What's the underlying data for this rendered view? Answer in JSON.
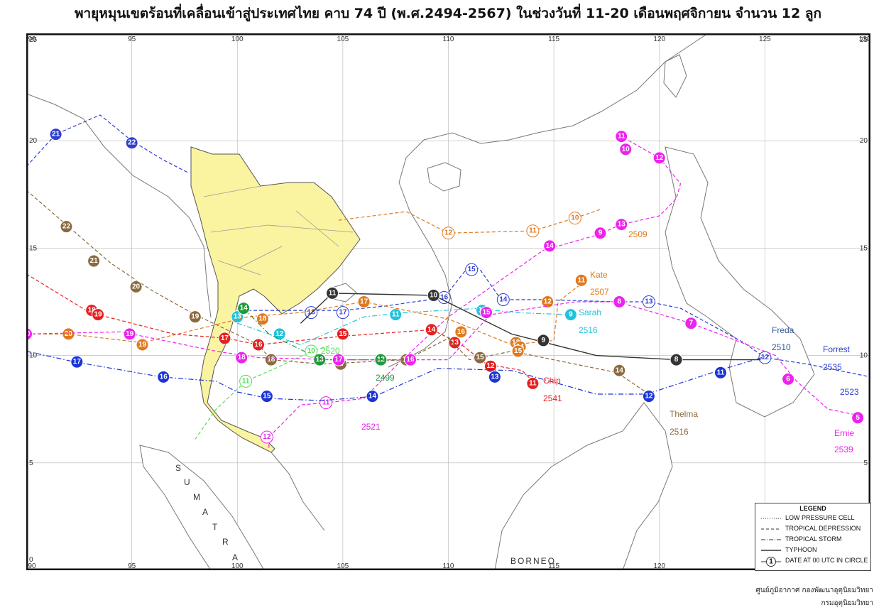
{
  "title": "พายุหมุนเขตร้อนที่เคลื่อนเข้าสู่ประเทศไทย คาบ 74 ปี (พ.ศ.2494-2567) ในช่วงวันที่ 11-20 เดือนพฤศจิกายน จำนวน 12 ลูก",
  "axes": {
    "lon_ticks": [
      "90",
      "95",
      "100",
      "105",
      "110",
      "115",
      "120",
      "125",
      "130"
    ],
    "lat_ticks": [
      "25",
      "20",
      "15",
      "10",
      "5",
      "0"
    ]
  },
  "geo_labels": {
    "sumatra": [
      "S",
      "U",
      "M",
      "A",
      "T",
      "R",
      "A"
    ],
    "borneo": "BORNEO"
  },
  "storm_labels": [
    {
      "text": "2509",
      "color": "#e07a1f"
    },
    {
      "text": "Kate",
      "color": "#e07a1f"
    },
    {
      "text": "2507",
      "color": "#e07a1f"
    },
    {
      "text": "Sarah",
      "color": "#1fc4dc"
    },
    {
      "text": "2516",
      "color": "#1fc4dc"
    },
    {
      "text": "Freda",
      "color": "#3a5a9c"
    },
    {
      "text": "2510",
      "color": "#3a5a9c"
    },
    {
      "text": "Forrest",
      "color": "#2f3fd1"
    },
    {
      "text": "2535",
      "color": "#2f3fd1"
    },
    {
      "text": "2523",
      "color": "#2f3fd1"
    },
    {
      "text": "Chip",
      "color": "#e62020"
    },
    {
      "text": "2541",
      "color": "#e62020"
    },
    {
      "text": "Thelma",
      "color": "#8b6a3e"
    },
    {
      "text": "2516",
      "color": "#8b6a3e"
    },
    {
      "text": "Ernie",
      "color": "#ee22ee"
    },
    {
      "text": "2539",
      "color": "#ee22ee"
    },
    {
      "text": "2521",
      "color": "#ee22ee"
    },
    {
      "text": "2499",
      "color": "#1e9a3a"
    },
    {
      "text": "2520",
      "color": "#55dd55"
    }
  ],
  "legend": {
    "title": "LEGEND",
    "items": [
      {
        "style": "dotted",
        "label": "LOW PRESSURE CELL"
      },
      {
        "style": "dashed",
        "label": "TROPICAL DEPRESSION"
      },
      {
        "style": "dashdot",
        "label": "TROPICAL STORM"
      },
      {
        "style": "solid",
        "label": "TYPHOON"
      },
      {
        "style": "circle",
        "symbol": "1",
        "label": "DATE AT 00 UTC IN CIRCLE"
      }
    ]
  },
  "credit": {
    "line1": "ศูนย์ภูมิอากาศ กองพัฒนาอุตุนิยมวิทยา",
    "line2": "กรมอุตุนิยมวิทยา"
  },
  "colors": {
    "thailand_fill": "#faf3a0",
    "land_outline": "#777777",
    "frame": "#111111",
    "grid": "#b5b5b5"
  },
  "tracks": [
    {
      "color": "#e07a1f",
      "style": "dashed",
      "points": [
        [
          104.8,
          16.3
        ],
        [
          108,
          16.7
        ],
        [
          110,
          15.7
        ],
        [
          114,
          15.8
        ],
        [
          116,
          16.4
        ],
        [
          117.2,
          16.8
        ]
      ],
      "dates": [
        {
          "d": "12",
          "lon": 110,
          "lat": 15.7,
          "hollow": true
        },
        {
          "d": "11",
          "lon": 114,
          "lat": 15.8,
          "hollow": true
        },
        {
          "d": "10",
          "lon": 116,
          "lat": 16.4,
          "hollow": true
        }
      ]
    },
    {
      "color": "#ee22ee",
      "style": "dashed",
      "points": [
        [
          101.5,
          5.7
        ],
        [
          101.5,
          6.2
        ],
        [
          103,
          7.7
        ],
        [
          104.2,
          7.8
        ],
        [
          106,
          8
        ],
        [
          107.5,
          9.5
        ],
        [
          110,
          11.8
        ],
        [
          114.5,
          14.9
        ],
        [
          117,
          15.6
        ],
        [
          118.2,
          16.1
        ],
        [
          120,
          16.5
        ],
        [
          120.8,
          17.3
        ],
        [
          121,
          18
        ],
        [
          120,
          19.2
        ],
        [
          118.2,
          20.2
        ]
      ],
      "dates": [
        {
          "d": "12",
          "lon": 101.4,
          "lat": 6.2,
          "hollow": true
        },
        {
          "d": "11",
          "lon": 104.2,
          "lat": 7.8,
          "hollow": true
        },
        {
          "d": "14",
          "lon": 114.8,
          "lat": 15.1
        },
        {
          "d": "9",
          "lon": 117.2,
          "lat": 15.7
        },
        {
          "d": "13",
          "lon": 118.2,
          "lat": 16.1
        },
        {
          "d": "11",
          "lon": 118.2,
          "lat": 20.2
        },
        {
          "d": "10",
          "lon": 118.4,
          "lat": 19.6
        },
        {
          "d": "12",
          "lon": 120,
          "lat": 19.2
        }
      ]
    },
    {
      "color": "#2f3fd1",
      "style": "dashed",
      "points": [
        [
          100.5,
          12.1
        ],
        [
          103.5,
          12.1
        ],
        [
          105,
          12.1
        ],
        [
          107,
          12.3
        ],
        [
          109.8,
          12.7
        ],
        [
          111,
          14.2
        ],
        [
          111.5,
          14
        ],
        [
          112.5,
          12.6
        ],
        [
          114.5,
          12.6
        ],
        [
          118,
          12.5
        ],
        [
          119.5,
          12.5
        ],
        [
          121,
          12.2
        ],
        [
          124,
          10.6
        ],
        [
          125,
          9.9
        ],
        [
          127,
          9.6
        ],
        [
          130,
          9
        ]
      ],
      "dates": [
        {
          "d": "18",
          "lon": 103.5,
          "lat": 12,
          "hollow": true
        },
        {
          "d": "17",
          "lon": 105,
          "lat": 12,
          "hollow": true
        },
        {
          "d": "16",
          "lon": 109.8,
          "lat": 12.7,
          "hollow": true
        },
        {
          "d": "15",
          "lon": 111.1,
          "lat": 14,
          "hollow": true
        },
        {
          "d": "14",
          "lon": 112.6,
          "lat": 12.6,
          "hollow": true
        },
        {
          "d": "13",
          "lon": 119.5,
          "lat": 12.5,
          "hollow": true
        },
        {
          "d": "12",
          "lon": 125,
          "lat": 9.9,
          "hollow": true
        }
      ]
    },
    {
      "color": "#1fc4dc",
      "style": "dashdot",
      "points": [
        [
          100,
          11.5
        ],
        [
          103,
          10.5
        ],
        [
          106,
          11.8
        ],
        [
          108,
          12
        ],
        [
          111.5,
          12.2
        ],
        [
          113,
          12
        ],
        [
          115.8,
          11.9
        ]
      ],
      "dates": [
        {
          "d": "13",
          "lon": 100,
          "lat": 11.8
        },
        {
          "d": "12",
          "lon": 102,
          "lat": 11
        },
        {
          "d": "11",
          "lon": 107.5,
          "lat": 11.9
        },
        {
          "d": "10",
          "lon": 111.6,
          "lat": 12.1
        },
        {
          "d": "9",
          "lon": 115.8,
          "lat": 11.9
        }
      ]
    },
    {
      "color": "#e62020",
      "style": "dashed",
      "points": [
        [
          90,
          13.8
        ],
        [
          93,
          12
        ],
        [
          97,
          11
        ],
        [
          99.5,
          10.8
        ],
        [
          101,
          10.5
        ],
        [
          105,
          10.9
        ],
        [
          109.2,
          11.2
        ],
        [
          110.5,
          10.6
        ],
        [
          111.8,
          9.6
        ],
        [
          113.5,
          9.3
        ],
        [
          114,
          8.8
        ]
      ],
      "dates": [
        {
          "d": "18",
          "lon": 93.1,
          "lat": 12.1
        },
        {
          "d": "19",
          "lon": 93.4,
          "lat": 11.9
        },
        {
          "d": "17",
          "lon": 99.4,
          "lat": 10.8
        },
        {
          "d": "16",
          "lon": 101,
          "lat": 10.5
        },
        {
          "d": "15",
          "lon": 105,
          "lat": 11
        },
        {
          "d": "14",
          "lon": 109.2,
          "lat": 11.2
        },
        {
          "d": "13",
          "lon": 110.3,
          "lat": 10.6
        },
        {
          "d": "12",
          "lon": 112,
          "lat": 9.5
        },
        {
          "d": "11",
          "lon": 114,
          "lat": 8.7
        }
      ]
    },
    {
      "color": "#8b6a3e",
      "style": "dashed",
      "points": [
        [
          90,
          17.7
        ],
        [
          92,
          16
        ],
        [
          94,
          14.3
        ],
        [
          96,
          13
        ],
        [
          98,
          11.9
        ],
        [
          101,
          10.5
        ],
        [
          101.6,
          9.8
        ],
        [
          104,
          9.6
        ],
        [
          108,
          9.8
        ],
        [
          110,
          10.8
        ],
        [
          111,
          9.8
        ],
        [
          113,
          10.2
        ],
        [
          118,
          9.2
        ],
        [
          119.5,
          8.2
        ]
      ],
      "dates": [
        {
          "d": "22",
          "lon": 91.9,
          "lat": 16
        },
        {
          "d": "21",
          "lon": 93.2,
          "lat": 14.4
        },
        {
          "d": "20",
          "lon": 95.2,
          "lat": 13.2
        },
        {
          "d": "19",
          "lon": 98,
          "lat": 11.8
        },
        {
          "d": "18",
          "lon": 101.6,
          "lat": 9.8
        },
        {
          "d": "17",
          "lon": 104.9,
          "lat": 9.6
        },
        {
          "d": "16",
          "lon": 108,
          "lat": 9.8
        },
        {
          "d": "15",
          "lon": 111.5,
          "lat": 9.9
        },
        {
          "d": "14",
          "lon": 118.1,
          "lat": 9.3
        }
      ]
    },
    {
      "color": "#e07a1f",
      "style": "dashed",
      "points": [
        [
          90,
          11
        ],
        [
          92,
          11
        ],
        [
          95.5,
          10.6
        ],
        [
          100.5,
          11.8
        ],
        [
          103,
          12
        ],
        [
          106,
          12.5
        ],
        [
          110,
          11.7
        ],
        [
          113,
          10.5
        ],
        [
          115,
          10.7
        ],
        [
          115.2,
          12.5
        ],
        [
          116.5,
          13.5
        ]
      ],
      "dates": [
        {
          "d": "20",
          "lon": 92,
          "lat": 11
        },
        {
          "d": "19",
          "lon": 95.5,
          "lat": 10.5
        },
        {
          "d": "18",
          "lon": 101.2,
          "lat": 11.7
        },
        {
          "d": "17",
          "lon": 106,
          "lat": 12.5
        },
        {
          "d": "16",
          "lon": 110.6,
          "lat": 11.1
        },
        {
          "d": "13",
          "lon": 113.2,
          "lat": 10.6
        },
        {
          "d": "14",
          "lon": 113.4,
          "lat": 10.4
        },
        {
          "d": "15",
          "lon": 113.3,
          "lat": 10.2
        },
        {
          "d": "12",
          "lon": 114.7,
          "lat": 12.5
        },
        {
          "d": "11",
          "lon": 116.3,
          "lat": 13.5
        }
      ]
    },
    {
      "color": "#333333",
      "style": "solid",
      "points": [
        [
          103,
          11.5
        ],
        [
          104.5,
          12.9
        ],
        [
          109.3,
          12.8
        ],
        [
          113,
          11
        ],
        [
          117,
          10
        ],
        [
          120.8,
          9.8
        ],
        [
          124.8,
          9.8
        ]
      ],
      "dates": [
        {
          "d": "11",
          "lon": 104.5,
          "lat": 12.9
        },
        {
          "d": "10",
          "lon": 109.3,
          "lat": 12.8
        },
        {
          "d": "9",
          "lon": 114.5,
          "lat": 10.7
        },
        {
          "d": "8",
          "lon": 120.8,
          "lat": 9.8
        }
      ]
    },
    {
      "color": "#1a35d6",
      "style": "dashdot",
      "points": [
        [
          90,
          10.2
        ],
        [
          92.3,
          9.7
        ],
        [
          96.4,
          9
        ],
        [
          99,
          8.8
        ],
        [
          100,
          8.3
        ],
        [
          101.5,
          8
        ],
        [
          104,
          7.9
        ],
        [
          106.5,
          8.1
        ],
        [
          109.5,
          9.4
        ],
        [
          113,
          9.3
        ],
        [
          117,
          8.2
        ],
        [
          119.4,
          8.2
        ],
        [
          122.8,
          9.3
        ],
        [
          125.2,
          10
        ]
      ],
      "dates": [
        {
          "d": "17",
          "lon": 92.4,
          "lat": 9.7
        },
        {
          "d": "16",
          "lon": 96.5,
          "lat": 9
        },
        {
          "d": "15",
          "lon": 101.4,
          "lat": 8.1
        },
        {
          "d": "14",
          "lon": 106.4,
          "lat": 8.1
        },
        {
          "d": "13",
          "lon": 112.2,
          "lat": 9
        },
        {
          "d": "12",
          "lon": 119.5,
          "lat": 8.1
        },
        {
          "d": "11",
          "lon": 122.9,
          "lat": 9.2
        }
      ]
    },
    {
      "color": "#1e9a3a",
      "style": "dashdot",
      "points": [
        [
          100.3,
          12.2
        ],
        [
          101.5,
          11
        ],
        [
          104,
          9.8
        ],
        [
          106.8,
          9.8
        ],
        [
          108,
          9.8
        ]
      ],
      "dates": [
        {
          "d": "14",
          "lon": 100.3,
          "lat": 12.2
        },
        {
          "d": "13",
          "lon": 103.9,
          "lat": 9.8
        },
        {
          "d": "12",
          "lon": 106.8,
          "lat": 9.8
        }
      ]
    },
    {
      "color": "#55dd55",
      "style": "dashed",
      "points": [
        [
          98,
          6.1
        ],
        [
          99,
          7.5
        ],
        [
          100.4,
          8.8
        ],
        [
          101.8,
          9.4
        ],
        [
          103.5,
          10.2
        ],
        [
          104.5,
          10.5
        ]
      ],
      "dates": [
        {
          "d": "11",
          "lon": 100.4,
          "lat": 8.8,
          "hollow": true
        },
        {
          "d": "10",
          "lon": 103.5,
          "lat": 10.2,
          "hollow": true
        }
      ]
    },
    {
      "color": "#ee22ee",
      "style": "dashed",
      "points": [
        [
          90,
          11
        ],
        [
          94.5,
          11.1
        ],
        [
          99,
          10.2
        ],
        [
          101,
          9.9
        ],
        [
          104.8,
          9.8
        ],
        [
          108,
          9.8
        ],
        [
          110,
          9.8
        ],
        [
          112,
          11.9
        ],
        [
          116,
          12.5
        ],
        [
          118,
          12.5
        ],
        [
          121.5,
          11.5
        ],
        [
          125.5,
          10
        ],
        [
          126.5,
          8.8
        ],
        [
          128,
          7.5
        ],
        [
          129.5,
          7.2
        ]
      ],
      "dates": [
        {
          "d": "20",
          "lon": 90,
          "lat": 11
        },
        {
          "d": "19",
          "lon": 94.9,
          "lat": 11
        },
        {
          "d": "18",
          "lon": 100.2,
          "lat": 9.9
        },
        {
          "d": "17",
          "lon": 104.8,
          "lat": 9.8
        },
        {
          "d": "16",
          "lon": 108.2,
          "lat": 9.8
        },
        {
          "d": "15",
          "lon": 111.8,
          "lat": 12
        },
        {
          "d": "8",
          "lon": 118.1,
          "lat": 12.5
        },
        {
          "d": "7",
          "lon": 121.5,
          "lat": 11.5
        },
        {
          "d": "6",
          "lon": 126.1,
          "lat": 8.9
        },
        {
          "d": "5",
          "lon": 129.4,
          "lat": 7.1
        }
      ]
    },
    {
      "color": "#2f3fd1",
      "style": "dashed",
      "points": [
        [
          90,
          18.8
        ],
        [
          91.4,
          20.3
        ],
        [
          93.5,
          21.2
        ],
        [
          95,
          20
        ],
        [
          96.5,
          19.1
        ],
        [
          97.7,
          18.5
        ]
      ],
      "dates": [
        {
          "d": "21",
          "lon": 91.4,
          "lat": 20.3
        },
        {
          "d": "22",
          "lon": 95,
          "lat": 19.9
        }
      ]
    }
  ]
}
